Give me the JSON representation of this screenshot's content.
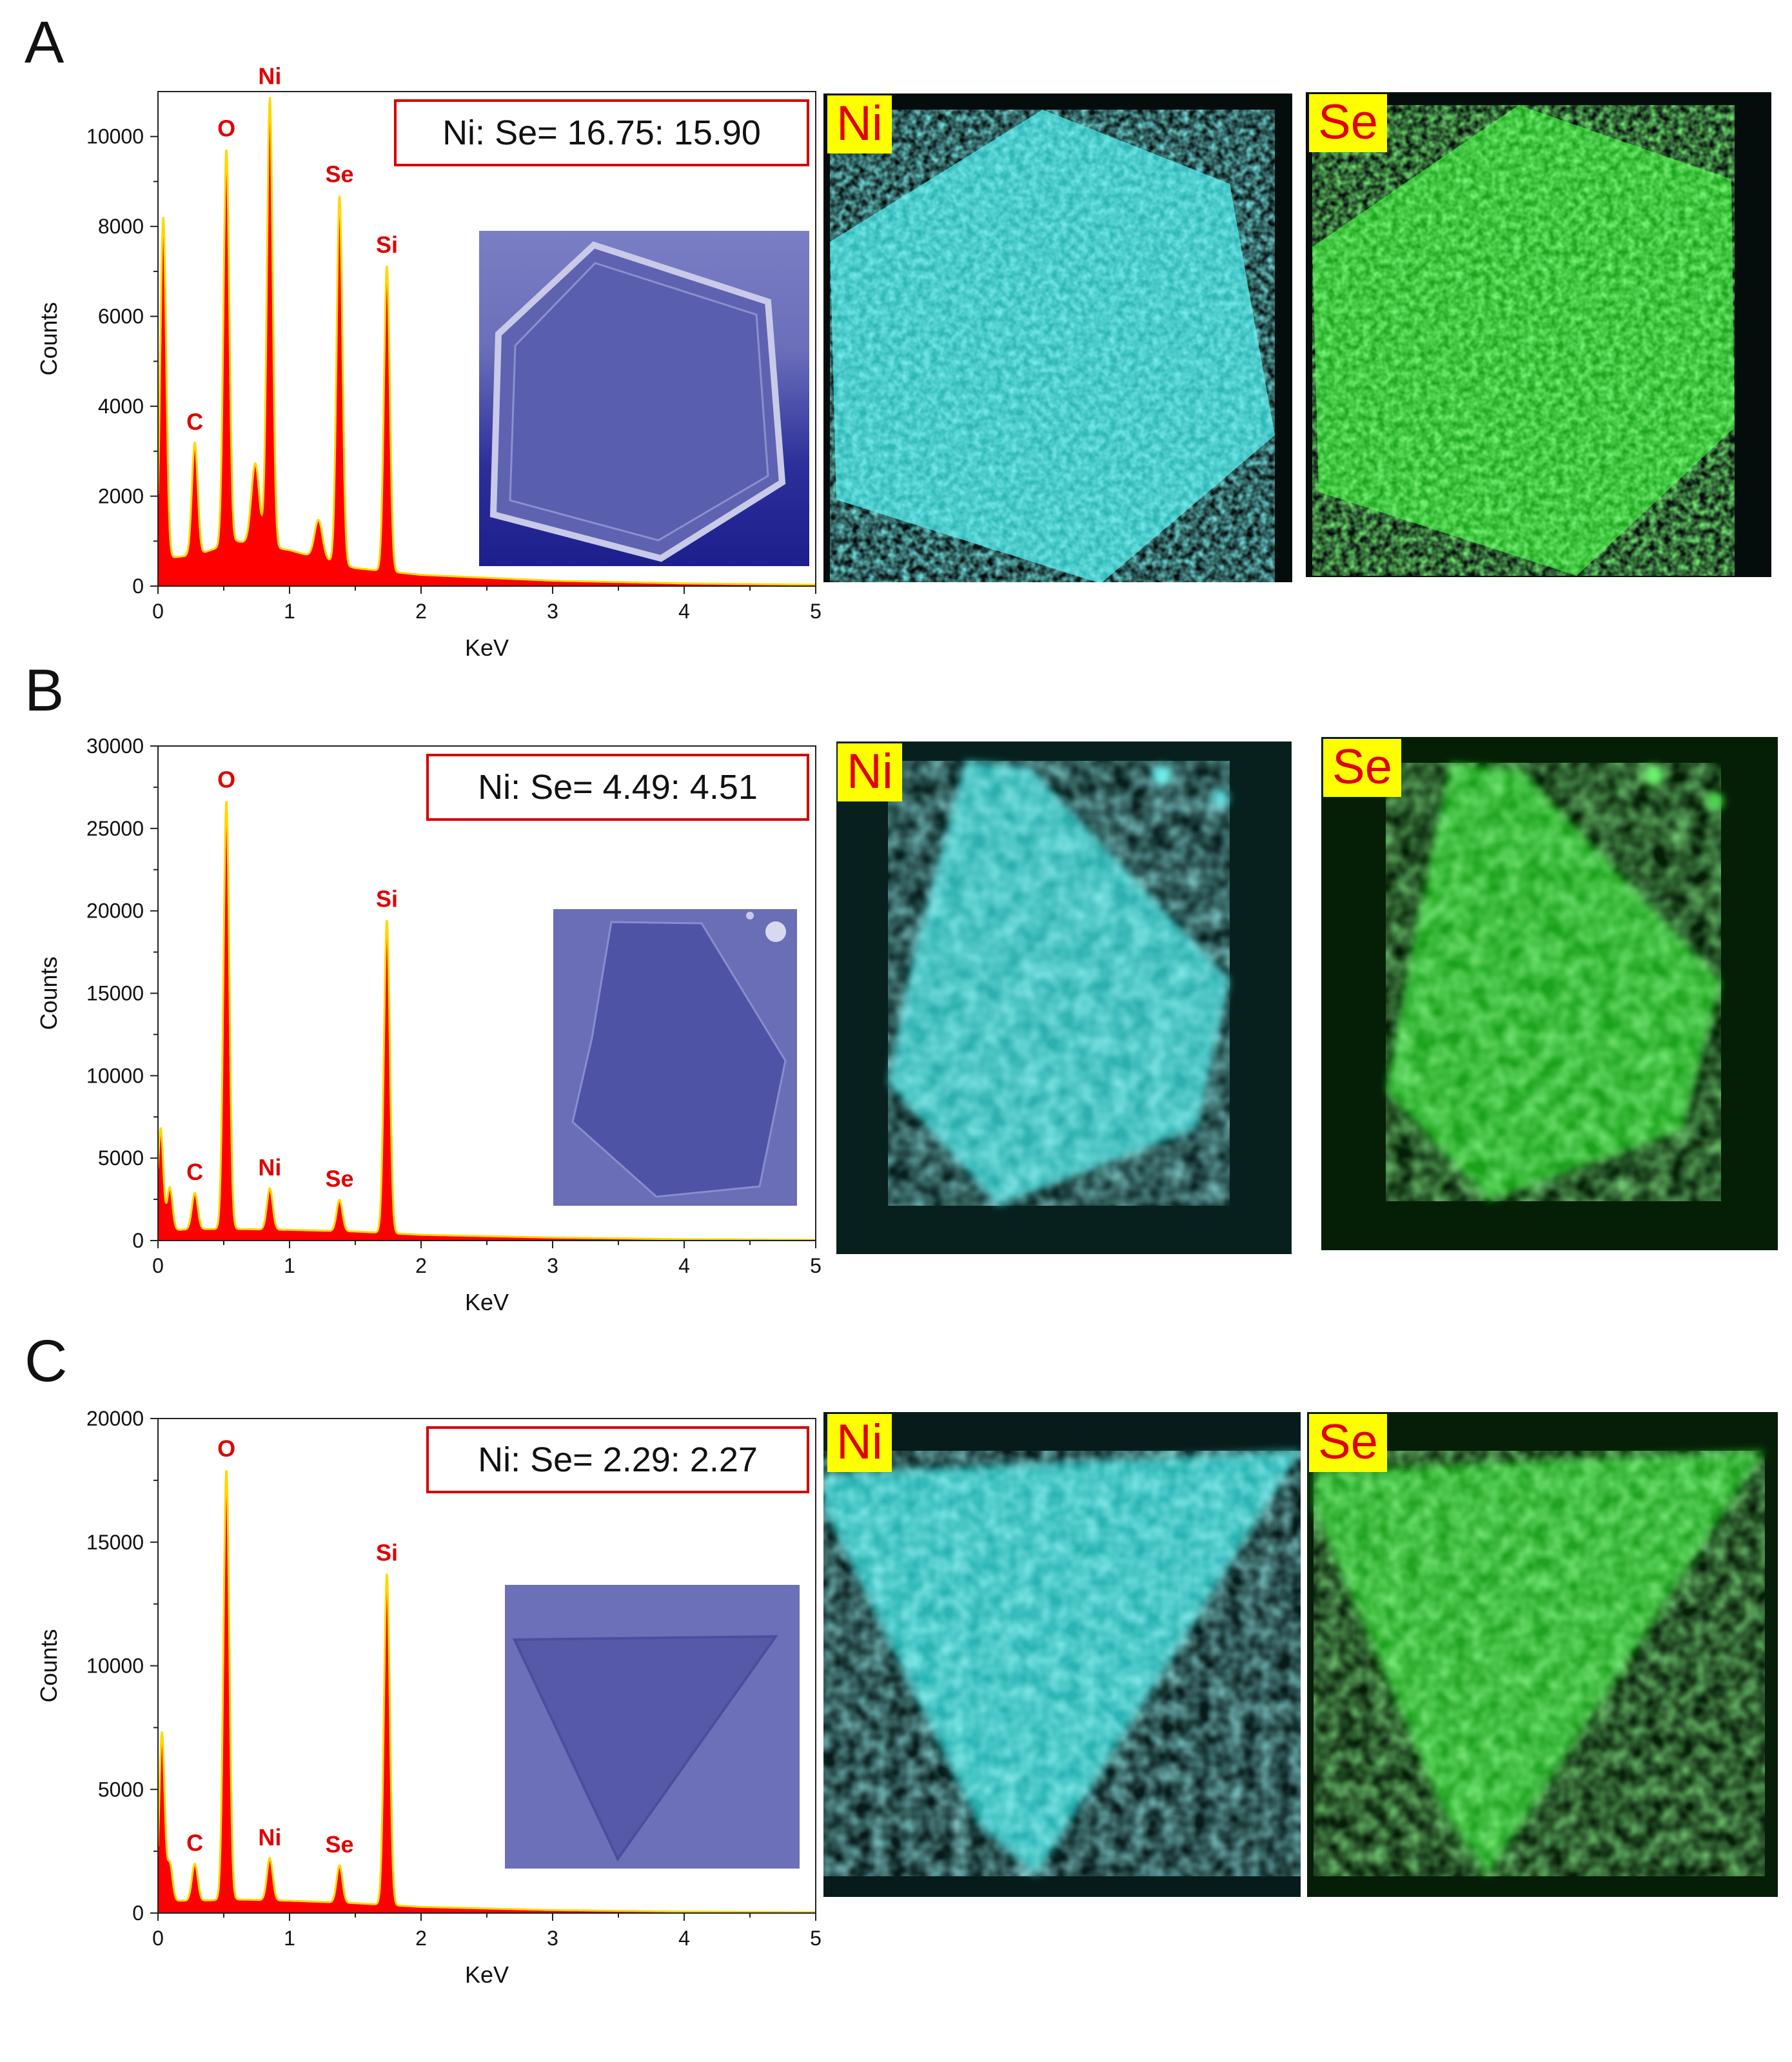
{
  "colors": {
    "spectrum_fill": "#ff0000",
    "spectrum_edge": "#ffd800",
    "peak_label": "#e00000",
    "ratio_box": "#d40000",
    "ni_map": "#35d4d4",
    "se_map": "#2ad62a",
    "tag_bg": "#ffff00",
    "tag_text": "#e00000",
    "inset_bg": "#6468b4"
  },
  "panels": [
    {
      "letter": "A",
      "ratio_text": "Ni: Se= 16.75: 15.90",
      "ni_tag": "Ni",
      "se_tag": "Se",
      "flake_shape": "hexagon"
    },
    {
      "letter": "B",
      "ratio_text": "Ni: Se= 4.49: 4.51",
      "ni_tag": "Ni",
      "se_tag": "Se",
      "flake_shape": "pentagon"
    },
    {
      "letter": "C",
      "ratio_text": "Ni: Se= 2.29: 2.27",
      "ni_tag": "Ni",
      "se_tag": "Se",
      "flake_shape": "triangle"
    }
  ],
  "chart_data": [
    {
      "type": "area",
      "xlabel": "KeV",
      "ylabel": "Counts",
      "xlim": [
        0,
        5
      ],
      "ylim": [
        0,
        11000
      ],
      "xticks": [
        0,
        1,
        2,
        3,
        4,
        5
      ],
      "yticks": [
        0,
        2000,
        4000,
        6000,
        8000,
        10000
      ],
      "grid": false,
      "peaks": [
        {
          "x": 0.04,
          "y": 7600,
          "w": 0.022
        },
        {
          "x": 0.28,
          "y": 2500,
          "w": 0.022,
          "label": "C"
        },
        {
          "x": 0.52,
          "y": 8800,
          "w": 0.022,
          "label": "O"
        },
        {
          "x": 0.74,
          "y": 1800,
          "w": 0.03
        },
        {
          "x": 0.85,
          "y": 10000,
          "w": 0.022,
          "label": "Ni"
        },
        {
          "x": 1.22,
          "y": 850,
          "w": 0.03
        },
        {
          "x": 1.38,
          "y": 8200,
          "w": 0.022,
          "label": "Se"
        },
        {
          "x": 1.74,
          "y": 6800,
          "w": 0.022,
          "label": "Si"
        }
      ],
      "background": [
        [
          0,
          600
        ],
        [
          0.3,
          700
        ],
        [
          0.6,
          1000
        ],
        [
          1.0,
          800
        ],
        [
          1.5,
          400
        ],
        [
          2.0,
          250
        ],
        [
          3.0,
          120
        ],
        [
          4.0,
          60
        ],
        [
          5.0,
          30
        ]
      ]
    },
    {
      "type": "area",
      "xlabel": "KeV",
      "ylabel": "Counts",
      "xlim": [
        0,
        5
      ],
      "ylim": [
        0,
        30000
      ],
      "xticks": [
        0,
        1,
        2,
        3,
        4,
        5
      ],
      "yticks": [
        0,
        5000,
        10000,
        15000,
        20000,
        25000,
        30000
      ],
      "grid": false,
      "peaks": [
        {
          "x": 0.02,
          "y": 6200,
          "w": 0.02
        },
        {
          "x": 0.09,
          "y": 2600,
          "w": 0.02
        },
        {
          "x": 0.28,
          "y": 2200,
          "w": 0.022,
          "label": "C"
        },
        {
          "x": 0.52,
          "y": 26000,
          "w": 0.022,
          "label": "O"
        },
        {
          "x": 0.85,
          "y": 2500,
          "w": 0.022,
          "label": "Ni"
        },
        {
          "x": 1.38,
          "y": 1900,
          "w": 0.022,
          "label": "Se"
        },
        {
          "x": 1.74,
          "y": 19000,
          "w": 0.022,
          "label": "Si"
        }
      ],
      "background": [
        [
          0,
          600
        ],
        [
          0.3,
          700
        ],
        [
          0.6,
          700
        ],
        [
          1.0,
          650
        ],
        [
          1.5,
          550
        ],
        [
          2.0,
          350
        ],
        [
          3.0,
          180
        ],
        [
          4.0,
          80
        ],
        [
          5.0,
          40
        ]
      ]
    },
    {
      "type": "area",
      "xlabel": "KeV",
      "ylabel": "Counts",
      "xlim": [
        0,
        5
      ],
      "ylim": [
        0,
        20000
      ],
      "xticks": [
        0,
        1,
        2,
        3,
        4,
        5
      ],
      "yticks": [
        0,
        5000,
        10000,
        15000,
        20000
      ],
      "grid": false,
      "peaks": [
        {
          "x": 0.03,
          "y": 6800,
          "w": 0.02
        },
        {
          "x": 0.09,
          "y": 1500,
          "w": 0.02
        },
        {
          "x": 0.28,
          "y": 1500,
          "w": 0.022,
          "label": "C"
        },
        {
          "x": 0.52,
          "y": 17400,
          "w": 0.022,
          "label": "O"
        },
        {
          "x": 0.85,
          "y": 1700,
          "w": 0.022,
          "label": "Ni"
        },
        {
          "x": 1.38,
          "y": 1500,
          "w": 0.022,
          "label": "Se"
        },
        {
          "x": 1.74,
          "y": 13400,
          "w": 0.022,
          "label": "Si"
        }
      ],
      "background": [
        [
          0,
          500
        ],
        [
          0.3,
          500
        ],
        [
          0.6,
          550
        ],
        [
          1.0,
          500
        ],
        [
          1.5,
          400
        ],
        [
          2.0,
          250
        ],
        [
          3.0,
          120
        ],
        [
          4.0,
          60
        ],
        [
          5.0,
          30
        ]
      ]
    }
  ]
}
